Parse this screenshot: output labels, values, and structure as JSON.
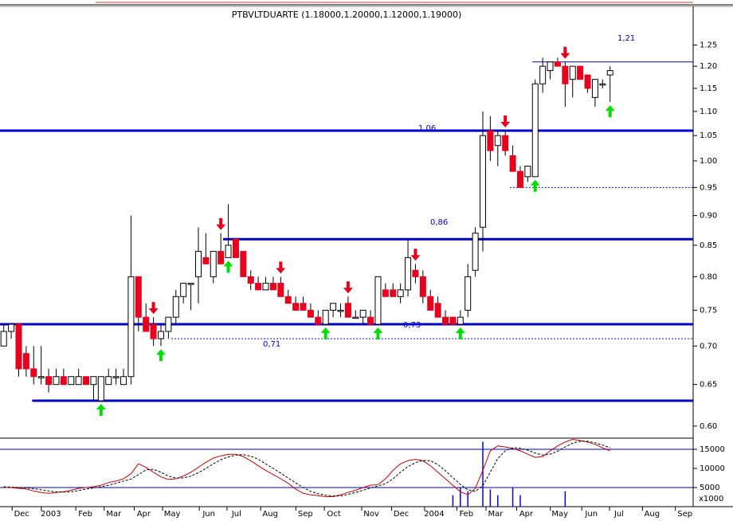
{
  "chart_data": [
    {
      "type": "candlestick",
      "title": "PTBVLTDUARTE (1.18000,1.20000,1.12000,1.19000)",
      "open": [
        0.7,
        0.72,
        0.73,
        0.69,
        0.67,
        0.66,
        0.66,
        0.65,
        0.66,
        0.65,
        0.65,
        0.66,
        0.65,
        0.63,
        0.65,
        0.66,
        0.65,
        0.66,
        0.8,
        0.74,
        0.73,
        0.71,
        0.72,
        0.74,
        0.77,
        0.79,
        0.8,
        0.83,
        0.8,
        0.84,
        0.83,
        0.86,
        0.84,
        0.8,
        0.79,
        0.78,
        0.79,
        0.79,
        0.77,
        0.76,
        0.76,
        0.75,
        0.74,
        0.73,
        0.75,
        0.75,
        0.76,
        0.74,
        0.74,
        0.74,
        0.73,
        0.78,
        0.78,
        0.77,
        0.78,
        0.81,
        0.8,
        0.77,
        0.76,
        0.74,
        0.74,
        0.73,
        0.75,
        0.81,
        0.88,
        1.06,
        1.03,
        1.05,
        1.01,
        0.98,
        0.97,
        0.97,
        1.16,
        1.19,
        1.21,
        1.2,
        1.17,
        1.2,
        1.18,
        1.13,
        1.16,
        1.18
      ],
      "high": [
        0.73,
        0.73,
        0.73,
        0.7,
        0.7,
        0.7,
        0.67,
        0.67,
        0.67,
        0.66,
        0.67,
        0.66,
        0.66,
        0.66,
        0.67,
        0.67,
        0.67,
        0.9,
        0.8,
        0.76,
        0.74,
        0.73,
        0.74,
        0.78,
        0.79,
        0.79,
        0.88,
        0.87,
        0.84,
        0.87,
        0.92,
        0.86,
        0.84,
        0.81,
        0.8,
        0.8,
        0.8,
        0.8,
        0.78,
        0.77,
        0.77,
        0.76,
        0.75,
        0.75,
        0.76,
        0.76,
        0.77,
        0.75,
        0.75,
        0.75,
        0.8,
        0.79,
        0.79,
        0.79,
        0.86,
        0.82,
        0.81,
        0.78,
        0.77,
        0.75,
        0.74,
        0.75,
        0.82,
        0.88,
        1.1,
        1.09,
        1.06,
        1.06,
        1.03,
        0.99,
        0.99,
        1.17,
        1.22,
        1.21,
        1.22,
        1.21,
        1.2,
        1.2,
        1.18,
        1.17,
        1.17,
        1.2
      ],
      "low": [
        0.7,
        0.71,
        0.66,
        0.66,
        0.65,
        0.65,
        0.64,
        0.65,
        0.65,
        0.65,
        0.65,
        0.65,
        0.63,
        0.63,
        0.65,
        0.65,
        0.65,
        0.65,
        0.72,
        0.72,
        0.7,
        0.7,
        0.71,
        0.73,
        0.76,
        0.75,
        0.76,
        0.82,
        0.79,
        0.82,
        0.83,
        0.83,
        0.8,
        0.78,
        0.78,
        0.78,
        0.78,
        0.77,
        0.76,
        0.75,
        0.75,
        0.74,
        0.73,
        0.73,
        0.74,
        0.74,
        0.74,
        0.74,
        0.73,
        0.73,
        0.73,
        0.77,
        0.77,
        0.76,
        0.77,
        0.79,
        0.76,
        0.75,
        0.74,
        0.73,
        0.73,
        0.73,
        0.74,
        0.8,
        0.84,
        1.0,
        0.99,
        1.01,
        0.98,
        0.95,
        0.96,
        0.97,
        1.14,
        1.17,
        1.2,
        1.11,
        1.13,
        1.17,
        1.14,
        1.11,
        1.15,
        1.12
      ],
      "close": [
        0.72,
        0.73,
        0.67,
        0.67,
        0.66,
        0.66,
        0.65,
        0.66,
        0.65,
        0.66,
        0.66,
        0.65,
        0.66,
        0.66,
        0.66,
        0.66,
        0.66,
        0.8,
        0.74,
        0.72,
        0.71,
        0.72,
        0.74,
        0.77,
        0.79,
        0.79,
        0.84,
        0.82,
        0.84,
        0.82,
        0.85,
        0.83,
        0.8,
        0.79,
        0.78,
        0.79,
        0.78,
        0.77,
        0.76,
        0.75,
        0.75,
        0.74,
        0.73,
        0.75,
        0.76,
        0.75,
        0.74,
        0.74,
        0.75,
        0.73,
        0.8,
        0.77,
        0.77,
        0.78,
        0.83,
        0.8,
        0.77,
        0.75,
        0.74,
        0.73,
        0.73,
        0.74,
        0.8,
        0.87,
        1.05,
        1.02,
        1.05,
        1.02,
        0.98,
        0.95,
        0.99,
        1.16,
        1.2,
        1.21,
        1.2,
        1.16,
        1.2,
        1.17,
        1.15,
        1.17,
        1.16,
        1.19
      ],
      "up_color": "#ffffff",
      "down_color": "#e8001c",
      "xlim": [
        -0.5,
        92.1
      ],
      "ylim": [
        0.588,
        1.31
      ],
      "log_y": true,
      "yticks": [
        {
          "value": 0.6,
          "label": "0.60"
        },
        0.65,
        {
          "value": 0.7,
          "label": "0.70"
        },
        0.75,
        {
          "value": 0.8,
          "label": "0.80"
        },
        0.85,
        {
          "value": 0.9,
          "label": "0.90"
        },
        0.95,
        {
          "value": 1.0,
          "label": "1.00"
        },
        1.05,
        {
          "value": 1.1,
          "label": "1.10"
        },
        1.15,
        {
          "value": 1.2,
          "label": "1.20"
        },
        1.25
      ],
      "level_color": "#0000cc",
      "levels": [
        {
          "value": 1.21,
          "label": "1,21",
          "from": 70.6,
          "style": "thin"
        },
        {
          "value": 1.06,
          "label": "1,06",
          "style": "thick"
        },
        {
          "value": 0.95,
          "from": 67.6,
          "style": "dotted"
        },
        {
          "value": 0.86,
          "label": "0,86",
          "from": 29.3,
          "style": "thick"
        },
        {
          "value": 0.73,
          "label": "0,73",
          "style": "thick"
        },
        {
          "value": 0.71,
          "label": "0,71",
          "from": 22.4,
          "style": "dotted"
        },
        {
          "value": 0.63,
          "from": 3.8,
          "style": "thick"
        }
      ],
      "sell_signals": [
        20,
        29,
        37,
        46,
        55,
        67,
        75
      ],
      "sell_color": "#e8001c",
      "buy_signals": [
        13,
        21,
        30,
        43,
        50,
        61,
        71,
        81
      ],
      "buy_color": "#00e000"
    },
    {
      "type": "line",
      "y_unit_label": "x1000",
      "xlim": [
        -0.5,
        92.1
      ],
      "xticks": [
        {
          "value": 2.4,
          "label": "Dec"
        },
        {
          "value": 6.3,
          "label": "2003"
        },
        {
          "value": 10.9,
          "label": "Feb"
        },
        {
          "value": 14.7,
          "label": "Mar"
        },
        {
          "value": 18.7,
          "label": "Apr"
        },
        {
          "value": 22.5,
          "label": "May"
        },
        {
          "value": 27.4,
          "label": "Jun"
        },
        {
          "value": 31.1,
          "label": "Jul"
        },
        {
          "value": 35.6,
          "label": "Aug"
        },
        {
          "value": 40.3,
          "label": "Sep"
        },
        {
          "value": 44.1,
          "label": "Oct"
        },
        {
          "value": 49.1,
          "label": "Nov"
        },
        {
          "value": 53.1,
          "label": "Dec"
        },
        {
          "value": 57.5,
          "label": "2004"
        },
        {
          "value": 61.8,
          "label": "Feb"
        },
        {
          "value": 65.7,
          "label": "Mar"
        },
        {
          "value": 69.8,
          "label": "Apr"
        },
        {
          "value": 74.3,
          "label": "May"
        },
        {
          "value": 78.5,
          "label": "Jun"
        },
        {
          "value": 82.2,
          "label": "Jul"
        },
        {
          "value": 86.6,
          "label": "Aug"
        },
        {
          "value": 91.0,
          "label": "Sep"
        }
      ],
      "ylim": [
        0,
        17500
      ],
      "yticks": [
        5000,
        10000,
        15000
      ],
      "ref_lines": [
        5000,
        15000
      ],
      "ref_color": "#0000cc",
      "series": [
        {
          "color": "#cc0000",
          "values": [
            5000,
            5000,
            4800,
            4600,
            4100,
            3700,
            3500,
            3700,
            3900,
            4300,
            4800,
            5000,
            5200,
            5600,
            6300,
            6700,
            7300,
            8600,
            11200,
            10300,
            9000,
            7800,
            7100,
            7300,
            8000,
            9000,
            10300,
            11600,
            12700,
            13300,
            13700,
            13700,
            13100,
            12000,
            10700,
            9500,
            8400,
            7300,
            6100,
            4600,
            3500,
            3100,
            2900,
            2600,
            2600,
            3100,
            3700,
            4300,
            5000,
            5600,
            5800,
            7300,
            9500,
            11200,
            12000,
            12400,
            12000,
            10700,
            9000,
            7300,
            5600,
            3900,
            3100,
            4800,
            9500,
            14600,
            15900,
            15600,
            15200,
            14600,
            13700,
            12900,
            13100,
            14600,
            15900,
            16900,
            17600,
            17300,
            16900,
            16300,
            15400,
            14600
          ]
        },
        {
          "color": "#000000",
          "dashed": true,
          "values": [
            5200,
            5100,
            5000,
            4900,
            4700,
            4400,
            4100,
            3900,
            3800,
            3900,
            4200,
            4600,
            4900,
            5200,
            5600,
            6100,
            6700,
            7200,
            8400,
            9600,
            9800,
            9000,
            8000,
            7500,
            7500,
            8000,
            8900,
            10000,
            11200,
            12300,
            13000,
            13500,
            13600,
            13200,
            12400,
            11200,
            10000,
            8800,
            7500,
            6200,
            5000,
            4000,
            3400,
            3000,
            2800,
            2800,
            3200,
            3700,
            4300,
            4900,
            5400,
            6000,
            7300,
            9000,
            10500,
            11500,
            12100,
            12000,
            11000,
            9400,
            7600,
            5800,
            4400,
            4000,
            5500,
            9000,
            12600,
            14600,
            15400,
            15300,
            14800,
            14000,
            13500,
            13700,
            14500,
            15600,
            16600,
            17100,
            17100,
            16700,
            16100,
            15400
          ]
        }
      ],
      "volume": {
        "color": "#0000ff",
        "values": [
          null,
          null,
          null,
          null,
          null,
          null,
          null,
          null,
          null,
          null,
          null,
          null,
          null,
          null,
          null,
          null,
          null,
          null,
          null,
          null,
          null,
          null,
          null,
          null,
          null,
          null,
          null,
          null,
          null,
          null,
          null,
          null,
          null,
          null,
          null,
          null,
          null,
          null,
          null,
          null,
          null,
          null,
          null,
          null,
          null,
          null,
          null,
          null,
          null,
          null,
          null,
          null,
          null,
          null,
          null,
          null,
          null,
          null,
          null,
          null,
          3000,
          5000,
          4000,
          null,
          17000,
          4500,
          3000,
          null,
          5000,
          3000,
          null,
          null,
          null,
          null,
          null,
          4000,
          null,
          null,
          null,
          null,
          null,
          null
        ]
      }
    }
  ]
}
